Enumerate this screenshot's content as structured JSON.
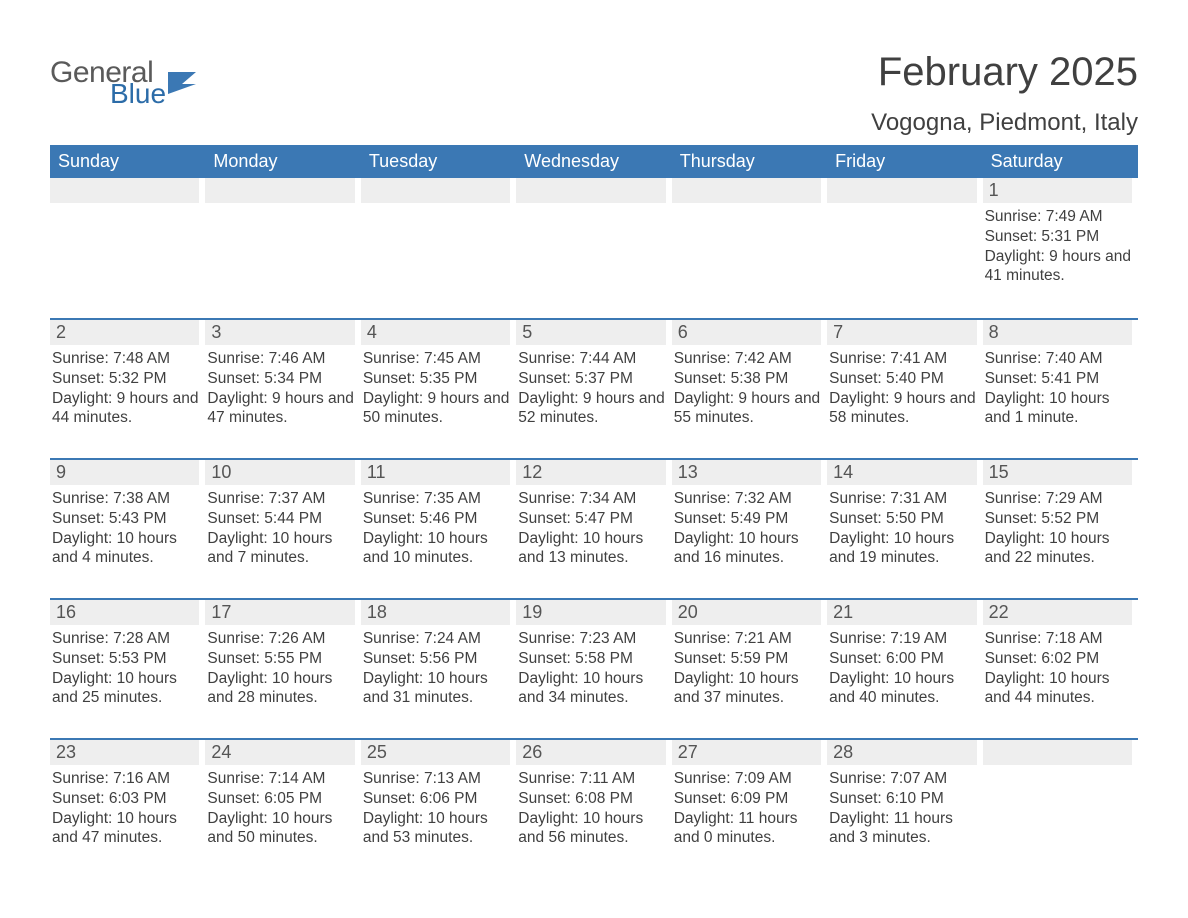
{
  "logo": {
    "word1": "General",
    "word2": "Blue",
    "flag_color": "#3b78b4"
  },
  "title": "February 2025",
  "location": "Vogogna, Piedmont, Italy",
  "colors": {
    "header_bg": "#3b78b4",
    "header_text": "#ffffff",
    "daynum_bg": "#eeeeee",
    "daynum_text": "#555555",
    "body_text": "#404040",
    "week_border": "#3b78b4",
    "logo_gray": "#5a5a5a",
    "logo_blue": "#2c6ca8"
  },
  "fonts": {
    "title_size": 40,
    "location_size": 24,
    "dow_size": 18,
    "daynum_size": 18,
    "body_size": 15.5
  },
  "days_of_week": [
    "Sunday",
    "Monday",
    "Tuesday",
    "Wednesday",
    "Thursday",
    "Friday",
    "Saturday"
  ],
  "weeks": [
    [
      {
        "n": "",
        "sunrise": "",
        "sunset": "",
        "daylight": ""
      },
      {
        "n": "",
        "sunrise": "",
        "sunset": "",
        "daylight": ""
      },
      {
        "n": "",
        "sunrise": "",
        "sunset": "",
        "daylight": ""
      },
      {
        "n": "",
        "sunrise": "",
        "sunset": "",
        "daylight": ""
      },
      {
        "n": "",
        "sunrise": "",
        "sunset": "",
        "daylight": ""
      },
      {
        "n": "",
        "sunrise": "",
        "sunset": "",
        "daylight": ""
      },
      {
        "n": "1",
        "sunrise": "Sunrise: 7:49 AM",
        "sunset": "Sunset: 5:31 PM",
        "daylight": "Daylight: 9 hours and 41 minutes."
      }
    ],
    [
      {
        "n": "2",
        "sunrise": "Sunrise: 7:48 AM",
        "sunset": "Sunset: 5:32 PM",
        "daylight": "Daylight: 9 hours and 44 minutes."
      },
      {
        "n": "3",
        "sunrise": "Sunrise: 7:46 AM",
        "sunset": "Sunset: 5:34 PM",
        "daylight": "Daylight: 9 hours and 47 minutes."
      },
      {
        "n": "4",
        "sunrise": "Sunrise: 7:45 AM",
        "sunset": "Sunset: 5:35 PM",
        "daylight": "Daylight: 9 hours and 50 minutes."
      },
      {
        "n": "5",
        "sunrise": "Sunrise: 7:44 AM",
        "sunset": "Sunset: 5:37 PM",
        "daylight": "Daylight: 9 hours and 52 minutes."
      },
      {
        "n": "6",
        "sunrise": "Sunrise: 7:42 AM",
        "sunset": "Sunset: 5:38 PM",
        "daylight": "Daylight: 9 hours and 55 minutes."
      },
      {
        "n": "7",
        "sunrise": "Sunrise: 7:41 AM",
        "sunset": "Sunset: 5:40 PM",
        "daylight": "Daylight: 9 hours and 58 minutes."
      },
      {
        "n": "8",
        "sunrise": "Sunrise: 7:40 AM",
        "sunset": "Sunset: 5:41 PM",
        "daylight": "Daylight: 10 hours and 1 minute."
      }
    ],
    [
      {
        "n": "9",
        "sunrise": "Sunrise: 7:38 AM",
        "sunset": "Sunset: 5:43 PM",
        "daylight": "Daylight: 10 hours and 4 minutes."
      },
      {
        "n": "10",
        "sunrise": "Sunrise: 7:37 AM",
        "sunset": "Sunset: 5:44 PM",
        "daylight": "Daylight: 10 hours and 7 minutes."
      },
      {
        "n": "11",
        "sunrise": "Sunrise: 7:35 AM",
        "sunset": "Sunset: 5:46 PM",
        "daylight": "Daylight: 10 hours and 10 minutes."
      },
      {
        "n": "12",
        "sunrise": "Sunrise: 7:34 AM",
        "sunset": "Sunset: 5:47 PM",
        "daylight": "Daylight: 10 hours and 13 minutes."
      },
      {
        "n": "13",
        "sunrise": "Sunrise: 7:32 AM",
        "sunset": "Sunset: 5:49 PM",
        "daylight": "Daylight: 10 hours and 16 minutes."
      },
      {
        "n": "14",
        "sunrise": "Sunrise: 7:31 AM",
        "sunset": "Sunset: 5:50 PM",
        "daylight": "Daylight: 10 hours and 19 minutes."
      },
      {
        "n": "15",
        "sunrise": "Sunrise: 7:29 AM",
        "sunset": "Sunset: 5:52 PM",
        "daylight": "Daylight: 10 hours and 22 minutes."
      }
    ],
    [
      {
        "n": "16",
        "sunrise": "Sunrise: 7:28 AM",
        "sunset": "Sunset: 5:53 PM",
        "daylight": "Daylight: 10 hours and 25 minutes."
      },
      {
        "n": "17",
        "sunrise": "Sunrise: 7:26 AM",
        "sunset": "Sunset: 5:55 PM",
        "daylight": "Daylight: 10 hours and 28 minutes."
      },
      {
        "n": "18",
        "sunrise": "Sunrise: 7:24 AM",
        "sunset": "Sunset: 5:56 PM",
        "daylight": "Daylight: 10 hours and 31 minutes."
      },
      {
        "n": "19",
        "sunrise": "Sunrise: 7:23 AM",
        "sunset": "Sunset: 5:58 PM",
        "daylight": "Daylight: 10 hours and 34 minutes."
      },
      {
        "n": "20",
        "sunrise": "Sunrise: 7:21 AM",
        "sunset": "Sunset: 5:59 PM",
        "daylight": "Daylight: 10 hours and 37 minutes."
      },
      {
        "n": "21",
        "sunrise": "Sunrise: 7:19 AM",
        "sunset": "Sunset: 6:00 PM",
        "daylight": "Daylight: 10 hours and 40 minutes."
      },
      {
        "n": "22",
        "sunrise": "Sunrise: 7:18 AM",
        "sunset": "Sunset: 6:02 PM",
        "daylight": "Daylight: 10 hours and 44 minutes."
      }
    ],
    [
      {
        "n": "23",
        "sunrise": "Sunrise: 7:16 AM",
        "sunset": "Sunset: 6:03 PM",
        "daylight": "Daylight: 10 hours and 47 minutes."
      },
      {
        "n": "24",
        "sunrise": "Sunrise: 7:14 AM",
        "sunset": "Sunset: 6:05 PM",
        "daylight": "Daylight: 10 hours and 50 minutes."
      },
      {
        "n": "25",
        "sunrise": "Sunrise: 7:13 AM",
        "sunset": "Sunset: 6:06 PM",
        "daylight": "Daylight: 10 hours and 53 minutes."
      },
      {
        "n": "26",
        "sunrise": "Sunrise: 7:11 AM",
        "sunset": "Sunset: 6:08 PM",
        "daylight": "Daylight: 10 hours and 56 minutes."
      },
      {
        "n": "27",
        "sunrise": "Sunrise: 7:09 AM",
        "sunset": "Sunset: 6:09 PM",
        "daylight": "Daylight: 11 hours and 0 minutes."
      },
      {
        "n": "28",
        "sunrise": "Sunrise: 7:07 AM",
        "sunset": "Sunset: 6:10 PM",
        "daylight": "Daylight: 11 hours and 3 minutes."
      },
      {
        "n": "",
        "sunrise": "",
        "sunset": "",
        "daylight": ""
      }
    ]
  ]
}
